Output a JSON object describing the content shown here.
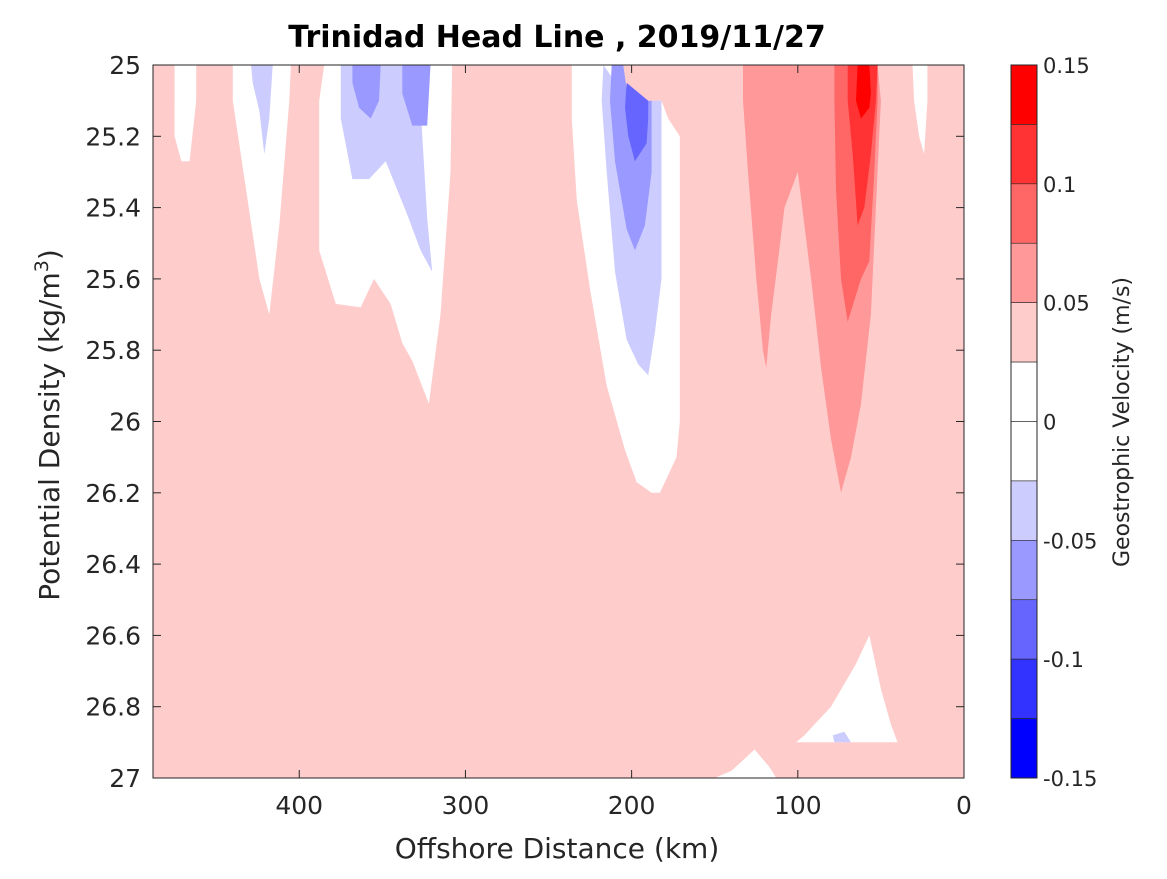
{
  "chart_data": {
    "type": "contourf",
    "title": "Trinidad Head Line , 2019/11/27",
    "xlabel": "Offshore Distance (km)",
    "ylabel": "Potential Density (kg/m",
    "ylabel_superscript": "3",
    "ylabel_suffix": ")",
    "x_axis": {
      "range": [
        488,
        0
      ],
      "direction": "reversed",
      "ticks": [
        400,
        300,
        200,
        100,
        0
      ],
      "tick_labels": [
        "400",
        "300",
        "200",
        "100",
        "0"
      ]
    },
    "y_axis": {
      "range": [
        25,
        27
      ],
      "direction": "reversed",
      "ticks": [
        25,
        25.2,
        25.4,
        25.6,
        25.8,
        26,
        26.2,
        26.4,
        26.6,
        26.8,
        27
      ],
      "tick_labels": [
        "25",
        "25.2",
        "25.4",
        "25.6",
        "25.8",
        "26",
        "26.2",
        "26.4",
        "26.6",
        "26.8",
        "27"
      ]
    },
    "colorbar": {
      "label": "Geostrophic Velocity (m/s)",
      "range": [
        -0.15,
        0.15
      ],
      "ticks": [
        0.15,
        0.1,
        0.05,
        0,
        -0.05,
        -0.1,
        -0.15
      ],
      "tick_labels": [
        "0.15",
        "0.1",
        "0.05",
        "0",
        "-0.05",
        "-0.1",
        "-0.15"
      ],
      "levels": [
        {
          "min": 0.125,
          "max": 0.15,
          "color": "#ff0000"
        },
        {
          "min": 0.1,
          "max": 0.125,
          "color": "#ff3333"
        },
        {
          "min": 0.075,
          "max": 0.1,
          "color": "#ff6666"
        },
        {
          "min": 0.05,
          "max": 0.075,
          "color": "#ff9999"
        },
        {
          "min": 0.025,
          "max": 0.05,
          "color": "#ffcccc"
        },
        {
          "min": 0.0,
          "max": 0.025,
          "color": "#ffffff"
        },
        {
          "min": -0.025,
          "max": 0.0,
          "color": "#ffffff"
        },
        {
          "min": -0.05,
          "max": -0.025,
          "color": "#ccccff"
        },
        {
          "min": -0.075,
          "max": -0.05,
          "color": "#9999ff"
        },
        {
          "min": -0.1,
          "max": -0.075,
          "color": "#6666ff"
        },
        {
          "min": -0.125,
          "max": -0.1,
          "color": "#3333ff"
        },
        {
          "min": -0.15,
          "max": -0.125,
          "color": "#0000ff"
        }
      ]
    },
    "regions": [
      {
        "level": 0.025,
        "points": [
          [
            488,
            27
          ],
          [
            488,
            25
          ],
          [
            0,
            25
          ],
          [
            0,
            27
          ]
        ]
      },
      {
        "level": -0.025,
        "points": [
          [
            475,
            25
          ],
          [
            462,
            25
          ],
          [
            462,
            25.1
          ],
          [
            466,
            25.27
          ],
          [
            471,
            25.27
          ],
          [
            475,
            25.2
          ]
        ]
      },
      {
        "level": -0.025,
        "points": [
          [
            440,
            25
          ],
          [
            405,
            25
          ],
          [
            406,
            25.1
          ],
          [
            412,
            25.45
          ],
          [
            418,
            25.7
          ],
          [
            424,
            25.6
          ],
          [
            432,
            25.35
          ],
          [
            440,
            25.1
          ]
        ]
      },
      {
        "level": -0.05,
        "points": [
          [
            429,
            25
          ],
          [
            416,
            25
          ],
          [
            418,
            25.15
          ],
          [
            421,
            25.25
          ],
          [
            424,
            25.13
          ],
          [
            428,
            25.05
          ]
        ]
      },
      {
        "level": -0.025,
        "points": [
          [
            385,
            25
          ],
          [
            308,
            25
          ],
          [
            309,
            25.3
          ],
          [
            315,
            25.7
          ],
          [
            322,
            25.95
          ],
          [
            332,
            25.83
          ],
          [
            338,
            25.78
          ],
          [
            345,
            25.67
          ],
          [
            355,
            25.6
          ],
          [
            363,
            25.68
          ],
          [
            378,
            25.67
          ],
          [
            388,
            25.52
          ],
          [
            388,
            25.1
          ]
        ]
      },
      {
        "level": -0.05,
        "points": [
          [
            375,
            25
          ],
          [
            328,
            25
          ],
          [
            327,
            25.12
          ],
          [
            323,
            25.43
          ],
          [
            320,
            25.58
          ],
          [
            327,
            25.52
          ],
          [
            335,
            25.42
          ],
          [
            348,
            25.27
          ],
          [
            358,
            25.32
          ],
          [
            368,
            25.32
          ],
          [
            375,
            25.15
          ]
        ]
      },
      {
        "level": -0.075,
        "points": [
          [
            368,
            25
          ],
          [
            351,
            25
          ],
          [
            352,
            25.1
          ],
          [
            357,
            25.15
          ],
          [
            364,
            25.12
          ],
          [
            368,
            25.05
          ]
        ]
      },
      {
        "level": -0.075,
        "points": [
          [
            338,
            25
          ],
          [
            321,
            25
          ],
          [
            323,
            25.17
          ],
          [
            332,
            25.17
          ],
          [
            338,
            25.08
          ]
        ]
      },
      {
        "level": 0.025,
        "points": [
          [
            303,
            25
          ],
          [
            296,
            25
          ],
          [
            295,
            25.05
          ],
          [
            299,
            25.13
          ],
          [
            303,
            25.08
          ]
        ]
      },
      {
        "level": 0.025,
        "points": [
          [
            282,
            25
          ],
          [
            252,
            25
          ],
          [
            250,
            25.2
          ],
          [
            249,
            25.55
          ],
          [
            249,
            25.75
          ],
          [
            255,
            25.73
          ],
          [
            266,
            25.6
          ],
          [
            275,
            25.42
          ],
          [
            280,
            25.18
          ]
        ]
      },
      {
        "level": -0.025,
        "points": [
          [
            236,
            25
          ],
          [
            205,
            25
          ],
          [
            202,
            25.1
          ],
          [
            182,
            25.1
          ],
          [
            178,
            25.15
          ],
          [
            171,
            25.2
          ],
          [
            171,
            26
          ],
          [
            173,
            26.1
          ],
          [
            183,
            26.2
          ],
          [
            188,
            26.2
          ],
          [
            197,
            26.17
          ],
          [
            204,
            26.08
          ],
          [
            215,
            25.9
          ],
          [
            225,
            25.63
          ],
          [
            233,
            25.38
          ],
          [
            236,
            25.15
          ]
        ]
      },
      {
        "level": -0.05,
        "points": [
          [
            217,
            25
          ],
          [
            202,
            25.1
          ],
          [
            182,
            25.1
          ],
          [
            182,
            25.6
          ],
          [
            186,
            25.75
          ],
          [
            190,
            25.87
          ],
          [
            196,
            25.84
          ],
          [
            203,
            25.77
          ],
          [
            210,
            25.58
          ],
          [
            215,
            25.3
          ],
          [
            218,
            25.1
          ]
        ]
      },
      {
        "level": -0.075,
        "points": [
          [
            212,
            25
          ],
          [
            205,
            25
          ],
          [
            202,
            25.1
          ],
          [
            188,
            25.1
          ],
          [
            188,
            25.3
          ],
          [
            192,
            25.45
          ],
          [
            198,
            25.52
          ],
          [
            203,
            25.46
          ],
          [
            210,
            25.27
          ],
          [
            213,
            25.1
          ]
        ]
      },
      {
        "level": -0.1,
        "points": [
          [
            203,
            25.05
          ],
          [
            190,
            25.1
          ],
          [
            190,
            25.15
          ],
          [
            191,
            25.22
          ],
          [
            198,
            25.27
          ],
          [
            202,
            25.2
          ],
          [
            204,
            25.12
          ]
        ]
      },
      {
        "level": 0.025,
        "points": [
          [
            145,
            25
          ],
          [
            42,
            25
          ],
          [
            42,
            25.1
          ],
          [
            43,
            25.3
          ],
          [
            44,
            25.6
          ],
          [
            50,
            25.75
          ],
          [
            58,
            25.95
          ],
          [
            68,
            26.15
          ],
          [
            75,
            26.35
          ],
          [
            83,
            26.42
          ],
          [
            90,
            26.38
          ],
          [
            94,
            26.25
          ],
          [
            100,
            26.1
          ],
          [
            106,
            25.9
          ],
          [
            111,
            25.8
          ],
          [
            117,
            25.9
          ],
          [
            120,
            26.1
          ],
          [
            125,
            26.3
          ],
          [
            130,
            26.25
          ],
          [
            137,
            26
          ],
          [
            145,
            25.6
          ],
          [
            151,
            25.3
          ],
          [
            153,
            25.1
          ]
        ]
      },
      {
        "level": 0.05,
        "points": [
          [
            133,
            25
          ],
          [
            52,
            25
          ],
          [
            50,
            25.1
          ],
          [
            53,
            25.4
          ],
          [
            56,
            25.7
          ],
          [
            62,
            25.95
          ],
          [
            68,
            26.1
          ],
          [
            74,
            26.2
          ],
          [
            80,
            26.05
          ],
          [
            86,
            25.85
          ],
          [
            92,
            25.6
          ],
          [
            100,
            25.3
          ],
          [
            108,
            25.4
          ],
          [
            112,
            25.55
          ],
          [
            116,
            25.7
          ],
          [
            119,
            25.85
          ],
          [
            121,
            25.8
          ],
          [
            125,
            25.6
          ],
          [
            130,
            25.3
          ],
          [
            133,
            25.1
          ]
        ]
      },
      {
        "level": 0.075,
        "points": [
          [
            78,
            25
          ],
          [
            52,
            25
          ],
          [
            52,
            25.1
          ],
          [
            54,
            25.3
          ],
          [
            57,
            25.55
          ],
          [
            62,
            25.6
          ],
          [
            70,
            25.72
          ],
          [
            74,
            25.6
          ],
          [
            77,
            25.35
          ],
          [
            78,
            25.1
          ]
        ]
      },
      {
        "level": 0.1,
        "points": [
          [
            70,
            25
          ],
          [
            52,
            25
          ],
          [
            53,
            25.1
          ],
          [
            56,
            25.25
          ],
          [
            60,
            25.4
          ],
          [
            64,
            25.45
          ],
          [
            67,
            25.25
          ],
          [
            70,
            25.1
          ]
        ]
      },
      {
        "level": 0.125,
        "points": [
          [
            64,
            25
          ],
          [
            57,
            25
          ],
          [
            56,
            25.08
          ],
          [
            57,
            25.12
          ],
          [
            62,
            25.15
          ],
          [
            65,
            25.1
          ]
        ]
      },
      {
        "level": -0.025,
        "points": [
          [
            31,
            25
          ],
          [
            22,
            25
          ],
          [
            22,
            25.1
          ],
          [
            24,
            25.25
          ],
          [
            27,
            25.2
          ],
          [
            30,
            25.1
          ]
        ]
      },
      {
        "level": 0.025,
        "points": [
          [
            34,
            25.9
          ],
          [
            26,
            25.9
          ],
          [
            20,
            25.8
          ],
          [
            26,
            26.34
          ],
          [
            31,
            26.35
          ]
        ]
      },
      {
        "level": 0.025,
        "points": [
          [
            473,
            26.9
          ],
          [
            470,
            26.9
          ],
          [
            472,
            26.8
          ],
          [
            472,
            26.68
          ],
          [
            468,
            26.8
          ]
        ]
      },
      {
        "level": 0.025,
        "points": [
          [
            408,
            26.9
          ],
          [
            330,
            26.9
          ],
          [
            338,
            26.9
          ],
          [
            354,
            26.9
          ],
          [
            359,
            26.78
          ],
          [
            365,
            26.63
          ],
          [
            372,
            26.58
          ],
          [
            380,
            26.65
          ],
          [
            388,
            26.85
          ],
          [
            398,
            26.87
          ],
          [
            408,
            26.9
          ]
        ]
      },
      {
        "level": 0.025,
        "points": [
          [
            338,
            26.9
          ],
          [
            322,
            26.9
          ],
          [
            323,
            27
          ],
          [
            328,
            27
          ],
          [
            333,
            26.95
          ]
        ]
      },
      {
        "level": 0.025,
        "points": [
          [
            226,
            27
          ],
          [
            176,
            27
          ],
          [
            181,
            26.95
          ],
          [
            192,
            26.8
          ],
          [
            202,
            26.72
          ],
          [
            210,
            26.82
          ],
          [
            220,
            26.93
          ]
        ]
      },
      {
        "level": -0.025,
        "points": [
          [
            150,
            27
          ],
          [
            113,
            27
          ],
          [
            117,
            26.97
          ],
          [
            126,
            26.92
          ],
          [
            133,
            26.95
          ],
          [
            140,
            26.98
          ]
        ]
      },
      {
        "level": -0.025,
        "points": [
          [
            101,
            26.9
          ],
          [
            54,
            26.9
          ],
          [
            40,
            26.9
          ],
          [
            44,
            26.85
          ],
          [
            50,
            26.75
          ],
          [
            57,
            26.6
          ],
          [
            65,
            26.68
          ],
          [
            80,
            26.8
          ],
          [
            90,
            26.85
          ],
          [
            96,
            26.88
          ]
        ]
      },
      {
        "level": -0.05,
        "points": [
          [
            78,
            26.9
          ],
          [
            68,
            26.9
          ],
          [
            72,
            26.87
          ],
          [
            79,
            26.88
          ]
        ]
      }
    ]
  }
}
